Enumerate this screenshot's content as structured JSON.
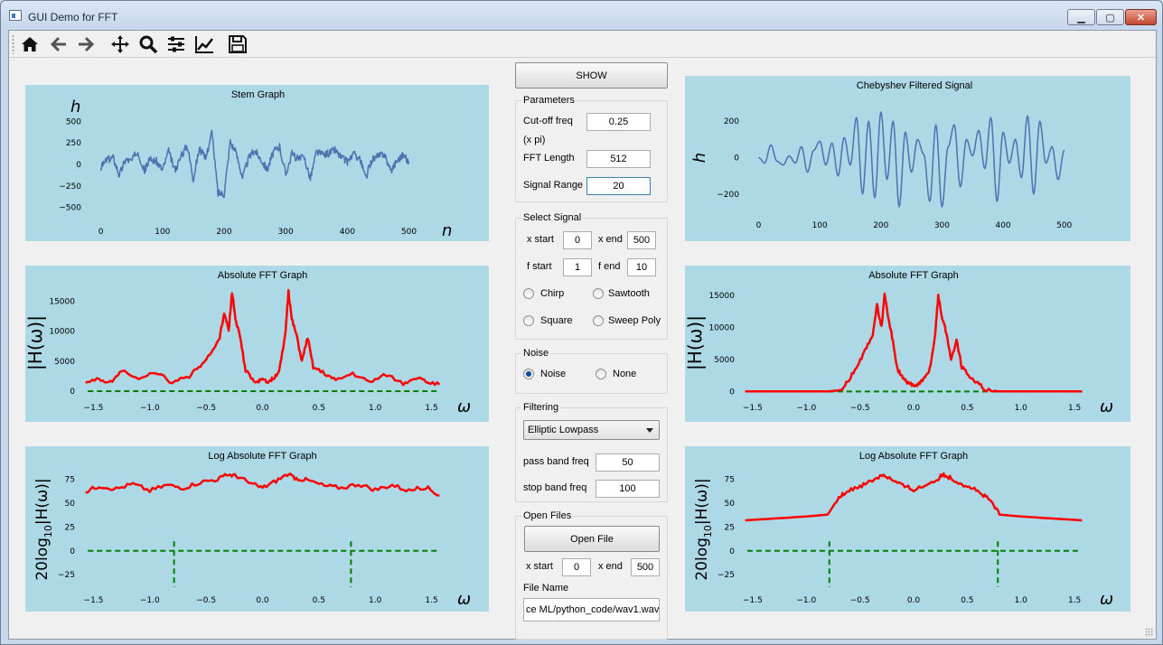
{
  "window": {
    "title": "GUI Demo for FFT"
  },
  "toolbar": {
    "icons": [
      "home-icon",
      "back-arrow-icon",
      "forward-arrow-icon",
      "pan-icon",
      "zoom-icon",
      "subplots-icon",
      "edit-curves-icon",
      "save-icon"
    ]
  },
  "controls": {
    "show_label": "SHOW",
    "parameters": {
      "title": "Parameters",
      "cutoff_label": "Cut-off freq",
      "cutoff_unit": "(x  pi)",
      "cutoff_value": "0.25",
      "fft_length_label": "FFT Length",
      "fft_length_value": "512",
      "signal_range_label": "Signal Range",
      "signal_range_value": "20"
    },
    "select_signal": {
      "title": "Select Signal",
      "x_start_label": "x start",
      "x_start_value": "0",
      "x_end_label": "x end",
      "x_end_value": "500",
      "f_start_label": "f start",
      "f_start_value": "1",
      "f_end_label": "f end",
      "f_end_value": "10",
      "chirp_label": "Chirp",
      "sawtooth_label": "Sawtooth",
      "square_label": "Square",
      "sweep_poly_label": "Sweep Poly"
    },
    "noise": {
      "title": "Noise",
      "noise_label": "Noise",
      "none_label": "None",
      "selected": "Noise"
    },
    "filtering": {
      "title": "Filtering",
      "filter_type": "Elliptic Lowpass",
      "pass_band_label": "pass band freq",
      "pass_band_value": "50",
      "stop_band_label": "stop band freq",
      "stop_band_value": "100"
    },
    "open_files": {
      "title": "Open Files",
      "open_file_label": "Open File",
      "x_start_label": "x start",
      "x_start_value": "0",
      "x_end_label": "x end",
      "x_end_value": "500",
      "file_name_label": "File Name",
      "file_name_value": "ce ML/python_code/wav1.wav"
    }
  },
  "chart_data": [
    {
      "id": "stem",
      "type": "line",
      "title": "Stem Graph",
      "xlabel": "n",
      "ylabel": "h",
      "xlim": [
        -20,
        530
      ],
      "ylim": [
        -650,
        650
      ],
      "xticks": [
        0,
        100,
        200,
        300,
        400,
        500
      ],
      "yticks": [
        500,
        250,
        0,
        -250,
        -500
      ],
      "color": "#4c72b0",
      "series_kind": "noise",
      "n": 512,
      "x": [
        0,
        10,
        20,
        30,
        40,
        50,
        60,
        70,
        80,
        90,
        100,
        110,
        120,
        130,
        140,
        150,
        160,
        170,
        180,
        190,
        200,
        210,
        220,
        230,
        240,
        250,
        260,
        270,
        280,
        290,
        300,
        310,
        320,
        330,
        340,
        350,
        360,
        370,
        380,
        390,
        400,
        410,
        420,
        430,
        440,
        450,
        460,
        470,
        480,
        490,
        500
      ],
      "y": [
        -40,
        60,
        80,
        -120,
        60,
        40,
        160,
        -80,
        60,
        40,
        -60,
        150,
        -70,
        90,
        230,
        -160,
        190,
        60,
        380,
        -330,
        -340,
        270,
        120,
        -150,
        80,
        160,
        60,
        -60,
        150,
        200,
        -110,
        120,
        60,
        80,
        -160,
        150,
        110,
        130,
        170,
        80,
        30,
        120,
        70,
        -160,
        60,
        90,
        130,
        -80,
        40,
        110,
        30
      ]
    },
    {
      "id": "cheb",
      "type": "line",
      "title": "Chebyshev Filtered Signal",
      "xlabel": "",
      "ylabel": "h",
      "xlim": [
        -20,
        530
      ],
      "ylim": [
        -310,
        310
      ],
      "xticks": [
        0,
        100,
        200,
        300,
        400,
        500
      ],
      "yticks": [
        200,
        0,
        -200
      ],
      "color": "#4c72b0",
      "series_kind": "smooth",
      "x": [
        0,
        10,
        20,
        30,
        40,
        50,
        60,
        70,
        80,
        90,
        100,
        110,
        120,
        130,
        140,
        150,
        160,
        170,
        180,
        190,
        200,
        210,
        220,
        230,
        240,
        250,
        260,
        270,
        280,
        290,
        300,
        310,
        320,
        330,
        340,
        350,
        360,
        370,
        380,
        390,
        400,
        410,
        420,
        430,
        440,
        450,
        460,
        470,
        480,
        490,
        500
      ],
      "y": [
        0,
        -30,
        70,
        -20,
        -40,
        10,
        -30,
        60,
        -80,
        40,
        90,
        -40,
        80,
        -100,
        110,
        -40,
        220,
        -200,
        200,
        -220,
        250,
        -120,
        200,
        -270,
        140,
        -80,
        100,
        20,
        -240,
        180,
        -270,
        60,
        180,
        -160,
        100,
        10,
        150,
        -60,
        220,
        -240,
        140,
        -30,
        100,
        -110,
        230,
        -200,
        200,
        -30,
        60,
        -120,
        40
      ]
    },
    {
      "id": "fft_l",
      "type": "line",
      "title": "Absolute FFT Graph",
      "xlabel": "ω",
      "ylabel": "|H(ω)|",
      "xlim": [
        -1.6,
        1.6
      ],
      "ylim": [
        -900,
        17000
      ],
      "xticks": [
        -1.5,
        -1.0,
        -0.5,
        0.0,
        0.5,
        1.0,
        1.5
      ],
      "yticks": [
        15000,
        10000,
        5000,
        0
      ],
      "color": "#ff0000",
      "baseline": 0,
      "x": [
        -1.57,
        -1.45,
        -1.35,
        -1.25,
        -1.1,
        -0.95,
        -0.8,
        -0.65,
        -0.55,
        -0.45,
        -0.38,
        -0.34,
        -0.3,
        -0.27,
        -0.24,
        -0.2,
        -0.15,
        -0.1,
        -0.05,
        0.0,
        0.05,
        0.1,
        0.15,
        0.2,
        0.23,
        0.26,
        0.3,
        0.35,
        0.4,
        0.45,
        0.55,
        0.65,
        0.8,
        0.95,
        1.1,
        1.25,
        1.35,
        1.45,
        1.57
      ],
      "y": [
        1200,
        2000,
        1500,
        3500,
        1800,
        3200,
        1400,
        2500,
        4200,
        6500,
        9000,
        13000,
        10000,
        16500,
        12000,
        9000,
        3500,
        2200,
        1600,
        1800,
        1600,
        2200,
        3500,
        9000,
        16500,
        12000,
        9500,
        5000,
        9000,
        4000,
        3000,
        1800,
        3000,
        1500,
        2800,
        1300,
        2300,
        1600,
        1100
      ]
    },
    {
      "id": "fft_r",
      "type": "line",
      "title": "Absolute FFT Graph",
      "xlabel": "ω",
      "ylabel": "|H(ω)|",
      "xlim": [
        -1.6,
        1.6
      ],
      "ylim": [
        -800,
        16000
      ],
      "xticks": [
        -1.5,
        -1.0,
        -0.5,
        0.0,
        0.5,
        1.0,
        1.5
      ],
      "yticks": [
        15000,
        10000,
        5000,
        0
      ],
      "color": "#ff0000",
      "baseline": 0,
      "x": [
        -1.57,
        -0.8,
        -0.68,
        -0.6,
        -0.52,
        -0.45,
        -0.38,
        -0.34,
        -0.3,
        -0.27,
        -0.24,
        -0.2,
        -0.15,
        -0.1,
        -0.05,
        0.0,
        0.05,
        0.1,
        0.15,
        0.2,
        0.23,
        0.26,
        0.3,
        0.35,
        0.4,
        0.45,
        0.52,
        0.6,
        0.68,
        0.8,
        1.57
      ],
      "y": [
        0,
        0,
        200,
        1800,
        4200,
        6500,
        9000,
        13500,
        10000,
        15000,
        12000,
        8500,
        3500,
        2000,
        1200,
        1000,
        1200,
        2000,
        3500,
        8500,
        15000,
        12000,
        9500,
        5000,
        8000,
        3800,
        2500,
        1200,
        150,
        0,
        0
      ]
    },
    {
      "id": "log_l",
      "type": "line",
      "title": "Log Absolute FFT Graph",
      "xlabel": "ω",
      "ylabel": "20log10|H(ω)|",
      "xlim": [
        -1.6,
        1.6
      ],
      "ylim": [
        -40,
        85
      ],
      "xticks": [
        -1.5,
        -1.0,
        -0.5,
        0.0,
        0.5,
        1.0,
        1.5
      ],
      "yticks": [
        75,
        50,
        25,
        0,
        -25
      ],
      "color": "#ff0000",
      "baseline": 0,
      "cutoff_markers": [
        -0.785,
        0.785
      ],
      "x": [
        -1.57,
        -1.45,
        -1.3,
        -1.15,
        -1.0,
        -0.85,
        -0.7,
        -0.55,
        -0.4,
        -0.3,
        -0.22,
        -0.1,
        0.0,
        0.1,
        0.22,
        0.3,
        0.4,
        0.55,
        0.7,
        0.85,
        1.0,
        1.15,
        1.3,
        1.45,
        1.57
      ],
      "y": [
        62,
        68,
        65,
        70,
        63,
        69,
        66,
        72,
        75,
        80,
        78,
        70,
        66,
        72,
        80,
        76,
        74,
        68,
        66,
        70,
        64,
        69,
        63,
        67,
        58
      ]
    },
    {
      "id": "log_r",
      "type": "line",
      "title": "Log Absolute FFT Graph",
      "xlabel": "ω",
      "ylabel": "20log10|H(ω)|",
      "xlim": [
        -1.6,
        1.6
      ],
      "ylim": [
        -40,
        85
      ],
      "xticks": [
        -1.5,
        -1.0,
        -0.5,
        0.0,
        0.5,
        1.0,
        1.5
      ],
      "yticks": [
        75,
        50,
        25,
        0,
        -25
      ],
      "color": "#ff0000",
      "baseline": 0,
      "cutoff_markers": [
        -0.785,
        0.785
      ],
      "x": [
        -1.57,
        -1.0,
        -0.8,
        -0.72,
        -0.65,
        -0.55,
        -0.45,
        -0.35,
        -0.28,
        -0.2,
        -0.1,
        0.0,
        0.1,
        0.2,
        0.28,
        0.35,
        0.45,
        0.55,
        0.65,
        0.72,
        0.8,
        1.0,
        1.57
      ],
      "y": [
        32,
        36,
        38,
        52,
        60,
        66,
        70,
        76,
        80,
        74,
        68,
        64,
        68,
        74,
        80,
        76,
        70,
        66,
        58,
        52,
        38,
        36,
        32
      ]
    }
  ]
}
